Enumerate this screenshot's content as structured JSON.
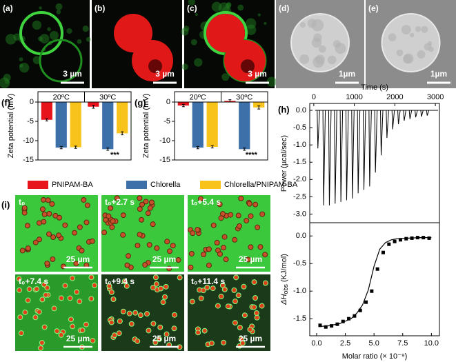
{
  "images": [
    {
      "label": "(a)",
      "scale": "3 µm"
    },
    {
      "label": "(b)",
      "scale": "3 µm"
    },
    {
      "label": "(c)",
      "scale": "3 µm"
    },
    {
      "label": "(d)",
      "scale": "1µm"
    },
    {
      "label": "(e)",
      "scale": "1µm"
    }
  ],
  "timelapse": {
    "label": "(i)",
    "frames": [
      {
        "time": "t₀",
        "scale": "25 µm"
      },
      {
        "time": "t₀+2.7 s",
        "scale": "25 µm"
      },
      {
        "time": "t₀+5.4 s",
        "scale": "25 µm"
      },
      {
        "time": "t₀+7.4 s",
        "scale": "25 µm"
      },
      {
        "time": "t₀+9.4 s",
        "scale": "25 µm"
      },
      {
        "time": "t₀+11.4 s",
        "scale": "25 µm"
      }
    ]
  },
  "chart_data": [
    {
      "type": "bar",
      "label": "(f)",
      "ylabel": "Zeta potential (mV)",
      "categories": [
        "20ºC",
        "30ºC"
      ],
      "ylim": [
        -15,
        0
      ],
      "yticks": [
        0,
        -5,
        -10,
        -15
      ],
      "annotation": "***",
      "series": [
        {
          "name": "PNIPAM-BA",
          "color": "#e8141c",
          "values": [
            -4.6,
            -1.2
          ],
          "errors": [
            0.3,
            0.4
          ]
        },
        {
          "name": "Chlorella",
          "color": "#3d6fa8",
          "values": [
            -11.8,
            -12.2
          ],
          "errors": [
            0.3,
            0.3
          ]
        },
        {
          "name": "Chlorella/PNIPAM-BA",
          "color": "#f8c41c",
          "values": [
            -11.7,
            -8.1
          ],
          "errors": [
            0.3,
            0.4
          ]
        }
      ]
    },
    {
      "type": "bar",
      "label": "(g)",
      "ylabel": "Zeta potential (mV)",
      "categories": [
        "20ºC",
        "30ºC"
      ],
      "ylim": [
        -15,
        0
      ],
      "yticks": [
        0,
        -5,
        -10,
        -15
      ],
      "annotation": "****",
      "series": [
        {
          "color": "#e8141c",
          "values": [
            -0.9,
            0.3
          ],
          "errors": [
            0.3,
            0.3
          ]
        },
        {
          "color": "#3d6fa8",
          "values": [
            -11.8,
            -12.2
          ],
          "errors": [
            0.3,
            0.3
          ]
        },
        {
          "color": "#f8c41c",
          "values": [
            -11.6,
            -1.4
          ],
          "errors": [
            0.3,
            0.4
          ]
        }
      ]
    },
    {
      "type": "spikes",
      "label": "(h)",
      "xlabel": "Time (s)",
      "ylabel": "Power (µcal/sec)",
      "xlim": [
        -100,
        3100
      ],
      "xticks": [
        0,
        1000,
        2000,
        3000
      ],
      "ylim": [
        -3.25,
        0.2
      ],
      "yticks": [
        {
          "value": 0,
          "label": "0.0"
        },
        -0.5,
        {
          "value": -1,
          "label": "-1.0"
        },
        -1.5,
        {
          "value": -2,
          "label": "-2.0"
        },
        -2.5,
        {
          "value": -3,
          "label": "-3.0"
        }
      ],
      "color": "#000000",
      "x": [
        100,
        242,
        384,
        526,
        668,
        810,
        952,
        1094,
        1236,
        1378,
        1520,
        1662,
        1804,
        1946,
        2088,
        2230,
        2372,
        2514,
        2656,
        2798
      ],
      "values": [
        -1.1,
        -2.75,
        -2.75,
        -2.7,
        -2.65,
        -2.6,
        -2.55,
        -2.4,
        -2.3,
        -2.2,
        -1.8,
        -1.3,
        -0.8,
        -0.55,
        -0.4,
        -0.3,
        -0.25,
        -0.2,
        -0.18,
        -0.15
      ]
    },
    {
      "type": "scatter",
      "ylabel": {
        "main": "ΔH",
        "sub": "obs",
        "unit": " (KJ/mol)"
      },
      "xlabel": "Molar ratio (× 10⁻⁹)",
      "xlim": [
        -0.6,
        10.7
      ],
      "xticks": [
        {
          "value": 0,
          "label": "0.0"
        },
        2.5,
        {
          "value": 5,
          "label": "5.0"
        },
        7.5,
        {
          "value": 10,
          "label": "10.0"
        }
      ],
      "ylim": [
        -1.81,
        0.24
      ],
      "yticks": [
        {
          "value": 0,
          "label": "0.0"
        },
        -0.5,
        {
          "value": -1,
          "label": "-1.0"
        },
        -1.5
      ],
      "series": [
        {
          "color": "#000000",
          "x": [
            0.3,
            0.8,
            1.3,
            1.8,
            2.3,
            2.8,
            3.3,
            3.8,
            4.3,
            4.8,
            5.3,
            5.8,
            6.3,
            6.8,
            7.3,
            7.8,
            8.3,
            8.8,
            9.3,
            9.8
          ],
          "values": [
            -1.62,
            -1.65,
            -1.63,
            -1.6,
            -1.55,
            -1.5,
            -1.45,
            -1.35,
            -1.2,
            -1.0,
            -0.6,
            -0.3,
            -0.15,
            -0.1,
            -0.07,
            -0.05,
            -0.04,
            -0.03,
            -0.03,
            -0.04
          ]
        },
        {
          "color": "#000000",
          "x": [
            0.3,
            1,
            2,
            3,
            3.5,
            4,
            4.5,
            5,
            5.5,
            6,
            6.5,
            7,
            8,
            9,
            10
          ],
          "values": [
            -1.64,
            -1.63,
            -1.59,
            -1.5,
            -1.4,
            -1.25,
            -0.98,
            -0.55,
            -0.24,
            -0.12,
            -0.07,
            -0.05,
            -0.04,
            -0.03,
            -0.03
          ]
        }
      ]
    }
  ]
}
